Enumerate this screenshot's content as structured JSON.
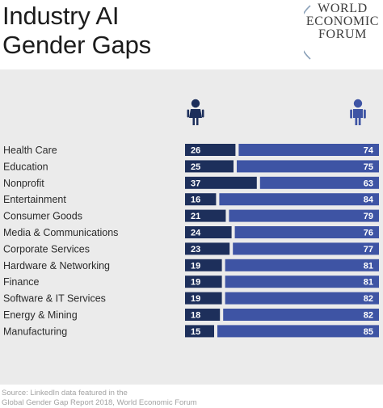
{
  "header": {
    "title_line1": "Industry AI",
    "title_line2": "Gender Gaps",
    "logo": {
      "line1": "WORLD",
      "line2": "ECONOMIC",
      "line3": "FORUM"
    }
  },
  "icons": {
    "female": "woman-icon",
    "male": "man-icon"
  },
  "colors": {
    "female_bar": "#1d2f5b",
    "male_bar": "#3e54a4",
    "panel": "#ebebeb",
    "label_text": "#2b2b2b"
  },
  "chart_data": {
    "type": "bar",
    "stacked": true,
    "orientation": "horizontal",
    "categories": [
      "Health Care",
      "Education",
      "Nonprofit",
      "Entertainment",
      "Consumer Goods",
      "Media & Communications",
      "Corporate Services",
      "Hardware & Networking",
      "Finance",
      "Software & IT Services",
      "Energy & Mining",
      "Manufacturing"
    ],
    "series": [
      {
        "values": [
          26,
          25,
          37,
          16,
          21,
          24,
          23,
          19,
          19,
          19,
          18,
          15
        ]
      },
      {
        "values": [
          74,
          75,
          63,
          84,
          79,
          76,
          77,
          81,
          81,
          82,
          82,
          85
        ]
      }
    ],
    "xlim": [
      0,
      100
    ],
    "grid": false
  },
  "source": {
    "line1": "Source: LinkedIn data featured in the",
    "line2": "Global Gender Gap Report 2018, World Economic Forum"
  }
}
